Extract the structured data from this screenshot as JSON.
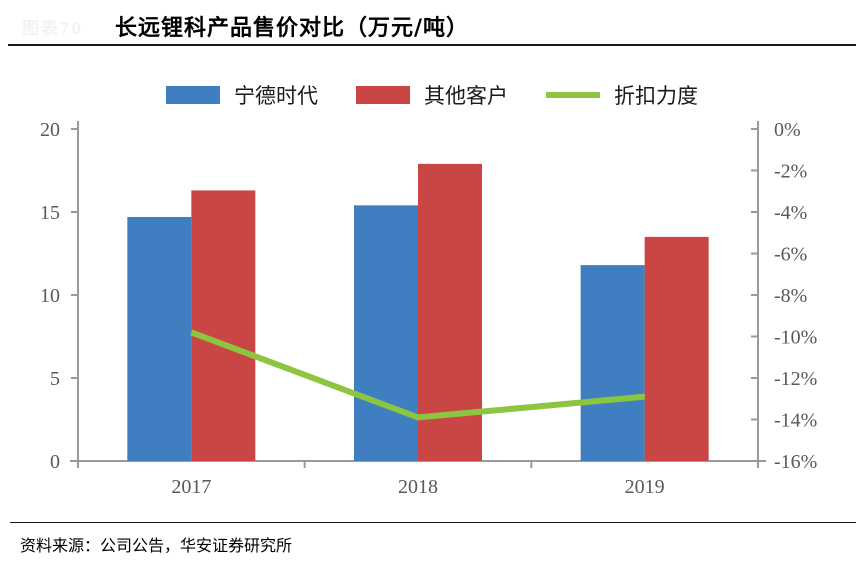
{
  "page": {
    "chart_number_faint": "图表70",
    "title": "长远锂科产品售价对比（万元/吨）",
    "source_note": "资料来源：公司公告，华安证券研究所"
  },
  "colors": {
    "catl_blue": "#3E7EC1",
    "others_red": "#C94645",
    "discount_green": "#8DC540",
    "axis_gray": "#9a9a9a",
    "tick_label_gray": "#595959"
  },
  "legend": {
    "items": [
      {
        "label": "宁德时代",
        "type": "bar",
        "color": "#3E7EC1"
      },
      {
        "label": "其他客户",
        "type": "bar",
        "color": "#C94645"
      },
      {
        "label": "折扣力度",
        "type": "line",
        "color": "#8DC540"
      }
    ]
  },
  "chart_data": {
    "type": "bar",
    "title": "长远锂科产品售价对比（万元/吨）",
    "categories": [
      "2017",
      "2018",
      "2019"
    ],
    "series": [
      {
        "name": "宁德时代",
        "type": "bar",
        "axis": "left",
        "color": "#3E7EC1",
        "values": [
          14.7,
          15.4,
          11.8
        ]
      },
      {
        "name": "其他客户",
        "type": "bar",
        "axis": "left",
        "color": "#C94645",
        "values": [
          16.3,
          17.9,
          13.5
        ]
      },
      {
        "name": "折扣力度",
        "type": "line",
        "axis": "right",
        "color": "#8DC540",
        "values": [
          -9.8,
          -13.9,
          -12.9
        ]
      }
    ],
    "left_axis": {
      "min": 0,
      "max": 20,
      "tick_labels": [
        "0",
        "5",
        "10",
        "15",
        "20"
      ],
      "tick_values": [
        0,
        5,
        10,
        15,
        20
      ]
    },
    "right_axis": {
      "min": -16,
      "max": 0,
      "tick_labels": [
        "0%",
        "-2%",
        "-4%",
        "-6%",
        "-8%",
        "-10%",
        "-12%",
        "-14%",
        "-16%"
      ],
      "tick_values": [
        0,
        -2,
        -4,
        -6,
        -8,
        -10,
        -12,
        -14,
        -16
      ]
    },
    "grid": false,
    "legend_position": "top"
  }
}
